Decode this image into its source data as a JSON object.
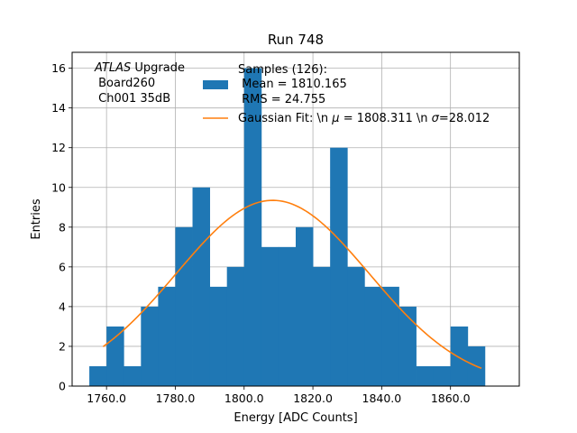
{
  "chart_data": {
    "type": "bar",
    "title": "Run 748",
    "xlabel": "Energy [ADC Counts]",
    "ylabel": "Entries",
    "xlim": [
      1750,
      1880
    ],
    "ylim": [
      0,
      16.8
    ],
    "xticks": [
      1760,
      1780,
      1800,
      1820,
      1840,
      1860
    ],
    "xtick_labels": [
      "1760.0",
      "1780.0",
      "1800.0",
      "1820.0",
      "1840.0",
      "1860.0"
    ],
    "yticks": [
      0,
      2,
      4,
      6,
      8,
      10,
      12,
      14,
      16
    ],
    "ytick_labels": [
      "0",
      "2",
      "4",
      "6",
      "8",
      "10",
      "12",
      "14",
      "16"
    ],
    "grid": true,
    "histogram": {
      "name": "Samples (126):",
      "bin_edges": [
        1755,
        1760,
        1765,
        1770,
        1775,
        1780,
        1785,
        1790,
        1795,
        1800,
        1805,
        1810,
        1815,
        1820,
        1825,
        1830,
        1835,
        1840,
        1845,
        1850,
        1855,
        1860,
        1865,
        1870
      ],
      "counts": [
        1,
        3,
        1,
        4,
        5,
        8,
        10,
        5,
        6,
        16,
        7,
        7,
        8,
        6,
        12,
        6,
        5,
        5,
        4,
        1,
        1,
        3,
        2
      ],
      "color": "#1f77b4",
      "legend_lines": [
        "Samples (126):",
        " Mean = 1810.165",
        " RMS = 24.755"
      ]
    },
    "fit": {
      "name": "Gaussian Fit",
      "amplitude": 9.35,
      "mu": 1808.311,
      "sigma": 28.012,
      "x_range": [
        1759,
        1869
      ],
      "color": "#ff7f0e",
      "legend_prefix": "Gaussian Fit: \\n ",
      "legend_mu_symbol": "μ",
      "legend_mu_value": " = 1808.311 \\n ",
      "legend_sigma_symbol": "σ",
      "legend_sigma_value": "=28.012"
    },
    "annotation": {
      "atlas": "ATLAS",
      "line1_rest": " Upgrade",
      "line2": " Board260",
      "line3": " Ch001 35dB"
    },
    "legend_placement": "upper-center"
  }
}
